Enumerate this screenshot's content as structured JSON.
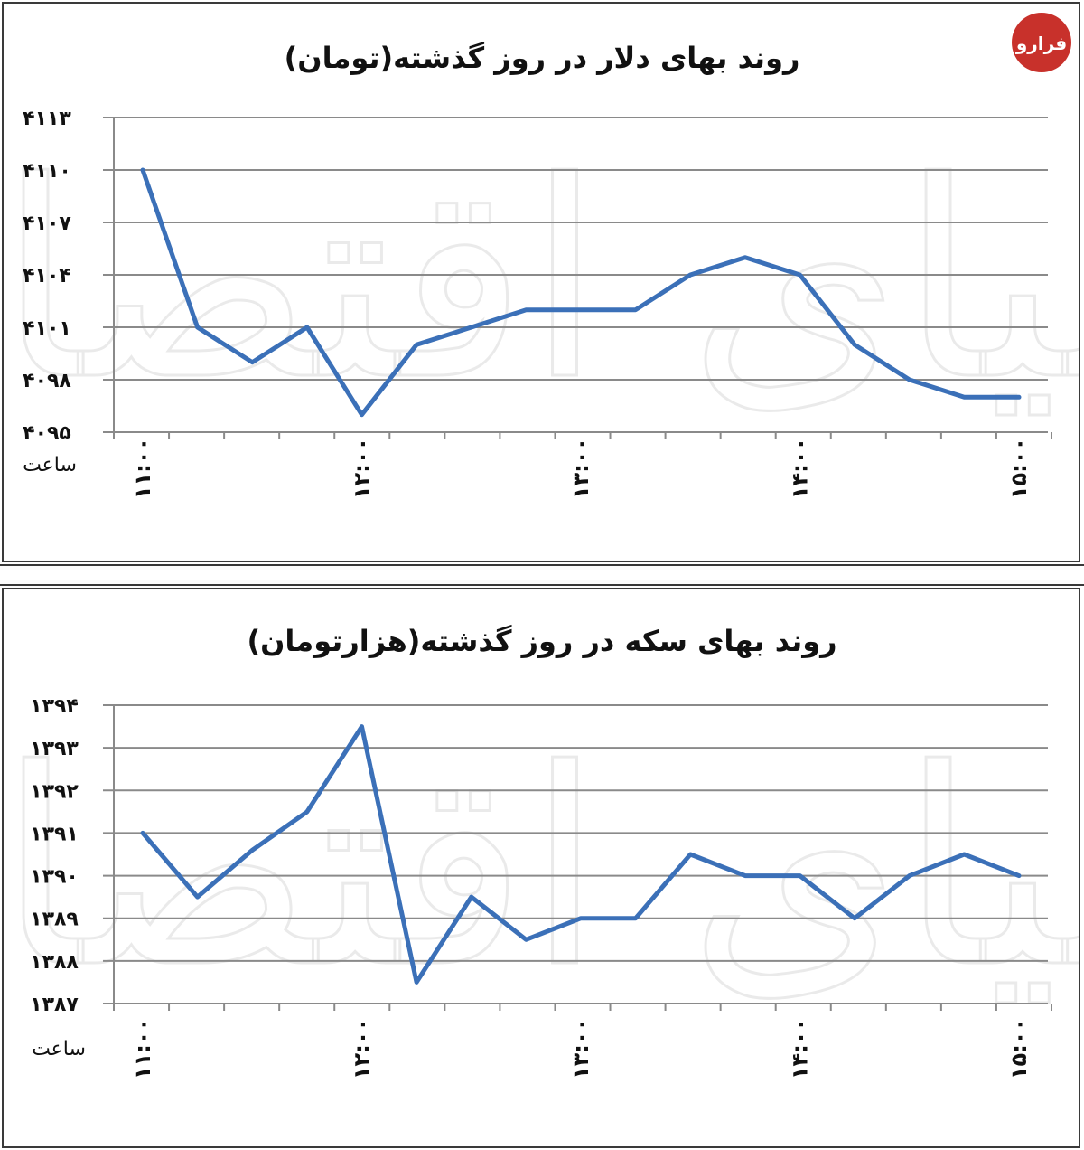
{
  "logo": {
    "text": "فرارو",
    "color": "#c8312b"
  },
  "charts": [
    {
      "title": "روند بهای دلار در روز گذشته(تومان)",
      "x_unit": "ساعت",
      "watermark": "دنیای اقتصاد"
    },
    {
      "title": "روند بهای سکه در روز گذشته(هزارتومان)",
      "x_unit": "ساعت",
      "watermark": "دنیای اقتصاد"
    }
  ],
  "chart_data": [
    {
      "type": "line",
      "title": "روند بهای دلار در روز گذشته(تومان)",
      "xlabel": "ساعت",
      "ylabel": "",
      "ylim": [
        4095,
        4113
      ],
      "y_ticks": [
        4095,
        4098,
        4101,
        4104,
        4107,
        4110,
        4113
      ],
      "y_tick_labels": [
        "۴۰۹۵",
        "۴۰۹۸",
        "۴۱۰۱",
        "۴۱۰۴",
        "۴۱۰۷",
        "۴۱۱۰",
        "۴۱۱۳"
      ],
      "x_tick_labels": [
        "۱۱:۰۰",
        "۱۲:۰۰",
        "۱۳:۰۰",
        "۱۴:۰۰",
        "۱۵:۰۰"
      ],
      "x_tick_positions": [
        0,
        4,
        8,
        12,
        16
      ],
      "grid": true,
      "color": "#3b70b8",
      "series": [
        {
          "values": [
            4110,
            4101,
            4099,
            4101,
            4096,
            4100,
            4101,
            4102,
            4102,
            4102,
            4104,
            4105,
            4104,
            4100,
            4098,
            4097,
            4097
          ]
        }
      ]
    },
    {
      "type": "line",
      "title": "روند بهای سکه در روز گذشته(هزارتومان)",
      "xlabel": "ساعت",
      "ylabel": "",
      "ylim": [
        1387,
        1394
      ],
      "y_ticks": [
        1387,
        1388,
        1389,
        1390,
        1391,
        1392,
        1393,
        1394
      ],
      "y_tick_labels": [
        "۱۳۸۷",
        "۱۳۸۸",
        "۱۳۸۹",
        "۱۳۹۰",
        "۱۳۹۱",
        "۱۳۹۲",
        "۱۳۹۳",
        "۱۳۹۴"
      ],
      "x_tick_labels": [
        "۱۱:۰۰",
        "۱۲:۰۰",
        "۱۳:۰۰",
        "۱۴:۰۰",
        "۱۵:۰۰"
      ],
      "x_tick_positions": [
        0,
        4,
        8,
        12,
        16
      ],
      "grid": true,
      "color": "#3b70b8",
      "series": [
        {
          "values": [
            1391,
            1389.5,
            1390.6,
            1391.5,
            1393.5,
            1387.5,
            1389.5,
            1388.5,
            1389,
            1389,
            1390.5,
            1390,
            1390,
            1389,
            1390,
            1390.5,
            1390
          ]
        }
      ]
    }
  ]
}
